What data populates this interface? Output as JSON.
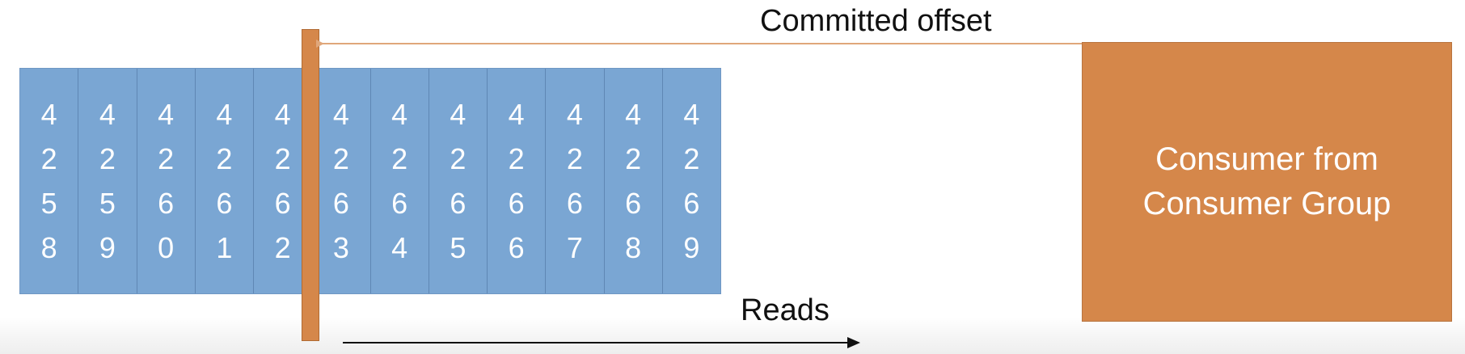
{
  "log": {
    "offsets": [
      [
        "4",
        "2",
        "5",
        "8"
      ],
      [
        "4",
        "2",
        "5",
        "9"
      ],
      [
        "4",
        "2",
        "6",
        "0"
      ],
      [
        "4",
        "2",
        "6",
        "1"
      ],
      [
        "4",
        "2",
        "6",
        "2"
      ],
      [
        "4",
        "2",
        "6",
        "3"
      ],
      [
        "4",
        "2",
        "6",
        "4"
      ],
      [
        "4",
        "2",
        "6",
        "5"
      ],
      [
        "4",
        "2",
        "6",
        "6"
      ],
      [
        "4",
        "2",
        "6",
        "7"
      ],
      [
        "4",
        "2",
        "6",
        "8"
      ],
      [
        "4",
        "2",
        "6",
        "9"
      ]
    ],
    "committed_after_index": 4
  },
  "labels": {
    "committed_offset": "Committed offset",
    "reads": "Reads",
    "consumer": "Consumer from\nConsumer Group"
  },
  "colors": {
    "log_fill": "#7aa6d3",
    "consumer_fill": "#d5874a",
    "commit_marker": "#d5874a",
    "commit_arrow": "#e0a77a",
    "reads_arrow": "#111111"
  }
}
